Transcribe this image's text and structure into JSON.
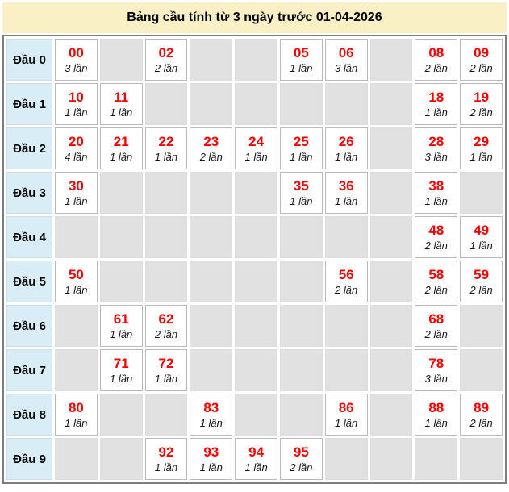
{
  "title": "Bảng cầu tính từ 3 ngày trước 01-04-2026",
  "colors": {
    "title_bg": "#faf0c6",
    "label_bg": "#d9edf7",
    "empty_bg": "#e1e1e1",
    "number_color": "#f50002"
  },
  "table": {
    "rows": [
      {
        "label": "Đầu 0",
        "cells": [
          {
            "n": "00",
            "c": "3 lần"
          },
          null,
          {
            "n": "02",
            "c": "2 lần"
          },
          null,
          null,
          {
            "n": "05",
            "c": "1 lần"
          },
          {
            "n": "06",
            "c": "3 lần"
          },
          null,
          {
            "n": "08",
            "c": "2 lần"
          },
          {
            "n": "09",
            "c": "2 lần"
          }
        ]
      },
      {
        "label": "Đầu 1",
        "cells": [
          {
            "n": "10",
            "c": "1 lần"
          },
          {
            "n": "11",
            "c": "1 lần"
          },
          null,
          null,
          null,
          null,
          null,
          null,
          {
            "n": "18",
            "c": "1 lần"
          },
          {
            "n": "19",
            "c": "2 lần"
          }
        ]
      },
      {
        "label": "Đầu 2",
        "cells": [
          {
            "n": "20",
            "c": "4 lần"
          },
          {
            "n": "21",
            "c": "1 lần"
          },
          {
            "n": "22",
            "c": "1 lần"
          },
          {
            "n": "23",
            "c": "2 lần"
          },
          {
            "n": "24",
            "c": "1 lần"
          },
          {
            "n": "25",
            "c": "1 lần"
          },
          {
            "n": "26",
            "c": "1 lần"
          },
          null,
          {
            "n": "28",
            "c": "3 lần"
          },
          {
            "n": "29",
            "c": "1 lần"
          }
        ]
      },
      {
        "label": "Đầu 3",
        "cells": [
          {
            "n": "30",
            "c": "1 lần"
          },
          null,
          null,
          null,
          null,
          {
            "n": "35",
            "c": "1 lần"
          },
          {
            "n": "36",
            "c": "1 lần"
          },
          null,
          {
            "n": "38",
            "c": "1 lần"
          },
          null
        ]
      },
      {
        "label": "Đầu 4",
        "cells": [
          null,
          null,
          null,
          null,
          null,
          null,
          null,
          null,
          {
            "n": "48",
            "c": "2 lần"
          },
          {
            "n": "49",
            "c": "1 lần"
          }
        ]
      },
      {
        "label": "Đầu 5",
        "cells": [
          {
            "n": "50",
            "c": "1 lần"
          },
          null,
          null,
          null,
          null,
          null,
          {
            "n": "56",
            "c": "2 lần"
          },
          null,
          {
            "n": "58",
            "c": "2 lần"
          },
          {
            "n": "59",
            "c": "2 lần"
          }
        ]
      },
      {
        "label": "Đầu 6",
        "cells": [
          null,
          {
            "n": "61",
            "c": "1 lần"
          },
          {
            "n": "62",
            "c": "2 lần"
          },
          null,
          null,
          null,
          null,
          null,
          {
            "n": "68",
            "c": "2 lần"
          },
          null
        ]
      },
      {
        "label": "Đầu 7",
        "cells": [
          null,
          {
            "n": "71",
            "c": "1 lần"
          },
          {
            "n": "72",
            "c": "1 lần"
          },
          null,
          null,
          null,
          null,
          null,
          {
            "n": "78",
            "c": "3 lần"
          },
          null
        ]
      },
      {
        "label": "Đầu 8",
        "cells": [
          {
            "n": "80",
            "c": "1 lần"
          },
          null,
          null,
          {
            "n": "83",
            "c": "1 lần"
          },
          null,
          null,
          {
            "n": "86",
            "c": "1 lần"
          },
          null,
          {
            "n": "88",
            "c": "1 lần"
          },
          {
            "n": "89",
            "c": "2 lần"
          }
        ]
      },
      {
        "label": "Đầu 9",
        "cells": [
          null,
          null,
          {
            "n": "92",
            "c": "1 lần"
          },
          {
            "n": "93",
            "c": "1 lần"
          },
          {
            "n": "94",
            "c": "1 lần"
          },
          {
            "n": "95",
            "c": "2 lần"
          },
          null,
          null,
          null,
          null
        ]
      }
    ]
  }
}
